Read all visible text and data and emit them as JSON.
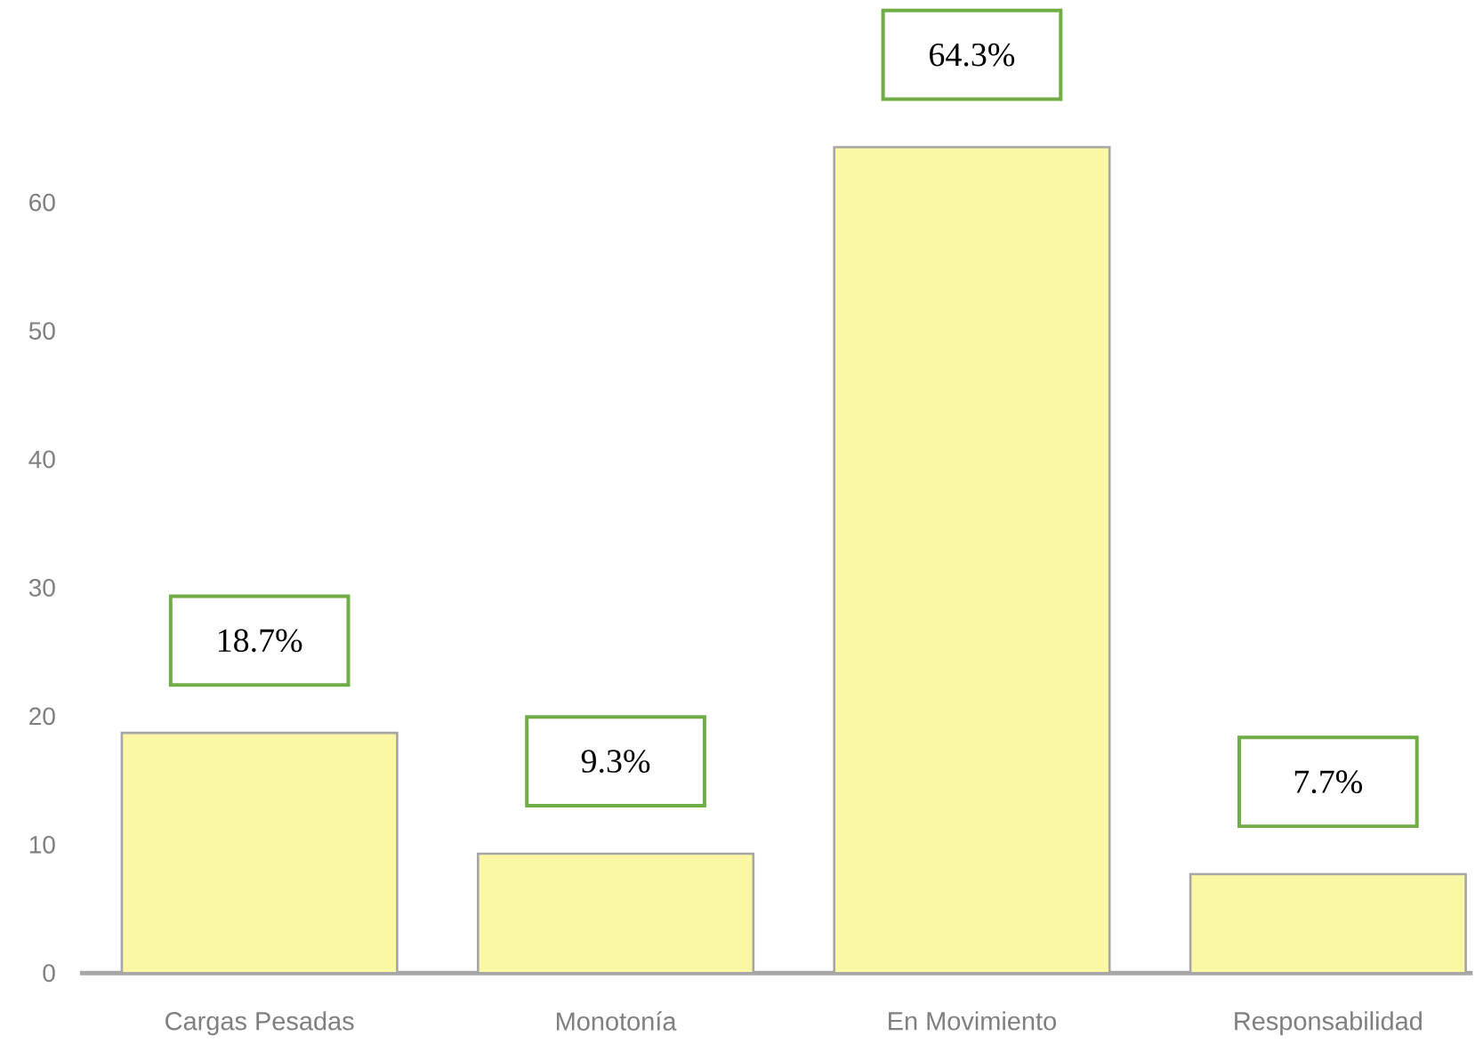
{
  "chart_data": {
    "type": "bar",
    "categories": [
      "Cargas Pesadas",
      "Monotonía",
      "En Movimiento",
      "Responsabilidad"
    ],
    "values": [
      18.7,
      9.3,
      64.3,
      7.7
    ],
    "color": "#faf8a5",
    "ylim": [
      0,
      75
    ],
    "yticks": [
      0,
      10,
      20,
      30,
      40,
      50,
      60
    ],
    "value_labels": [
      "18.7%",
      "9.3%",
      "64.3%",
      "7.7%"
    ]
  }
}
